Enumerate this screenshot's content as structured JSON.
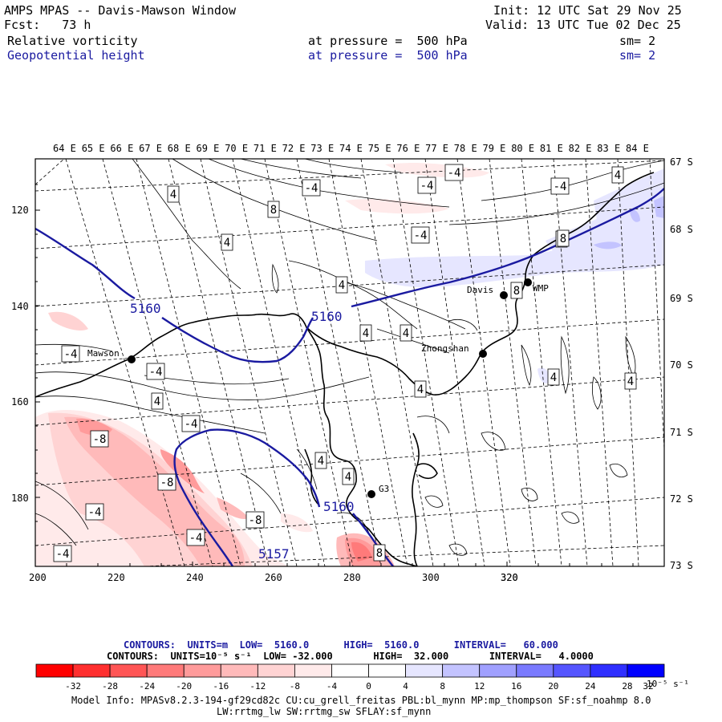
{
  "header": {
    "title": "AMPS MPAS -- Davis-Mawson Window",
    "init": "Init: 12 UTC Sat 29 Nov 25",
    "fcst": "Fcst:   73 h",
    "valid": "Valid: 13 UTC Tue 02 Dec 25",
    "field1_name": "Relative vorticity",
    "field1_level": "at pressure =  500 hPa",
    "field1_sm": "sm= 2",
    "field2_name": "Geopotential height",
    "field2_level": "at pressure =  500 hPa",
    "field2_sm": "sm= 2"
  },
  "map": {
    "lon_labels": [
      "64 E",
      "65 E",
      "66 E",
      "67 E",
      "68 E",
      "69 E",
      "70 E",
      "71 E",
      "72 E",
      "73 E",
      "74 E",
      "75 E",
      "76 E",
      "77 E",
      "78 E",
      "79 E",
      "80 E",
      "81 E",
      "82 E",
      "83 E",
      "84 E"
    ],
    "lat_labels": [
      "67 S",
      "68 S",
      "69 S",
      "70 S",
      "71 S",
      "72 S",
      "73 S"
    ],
    "x_ticks": [
      "200",
      "220",
      "240",
      "260",
      "280",
      "300",
      "320"
    ],
    "y_ticks": [
      "120",
      "140",
      "160",
      "180"
    ],
    "stations": [
      {
        "name": "Mawson"
      },
      {
        "name": "Davis"
      },
      {
        "name": "WMP"
      },
      {
        "name": "Zhongshan"
      },
      {
        "name": "G3"
      }
    ],
    "height_labels": [
      "5160",
      "5160",
      "5160",
      "5157"
    ],
    "vort_labels": [
      "4",
      "4",
      "8",
      "4",
      "4",
      "4",
      "4",
      "4",
      "4",
      "4",
      "4",
      "4",
      "4",
      "4",
      "-4",
      "-4",
      "-4",
      "-4",
      "-4",
      "-4",
      "-4",
      "-4",
      "-4",
      "-4",
      "-4",
      "-8",
      "-8",
      "-8",
      "-8",
      "8",
      "8",
      "8"
    ]
  },
  "legend": {
    "contours_height": "CONTOURS:  UNITS=m  LOW=  5160.0      HIGH=  5160.0      INTERVAL=   60.000",
    "contours_vort": "CONTOURS:  UNITS=10⁻⁵ s⁻¹  LOW= -32.000       HIGH=  32.000       INTERVAL=   4.0000",
    "colorbar_ticks": [
      "-32",
      "-28",
      "-24",
      "-20",
      "-16",
      "-12",
      "-8",
      "-4",
      "0",
      "4",
      "8",
      "12",
      "16",
      "20",
      "24",
      "28",
      "32"
    ],
    "colorbar_units": "10⁻⁵ s⁻¹",
    "colors": [
      "#ff0000",
      "#ff2f2f",
      "#ff5555",
      "#ff7a7a",
      "#ff9b9b",
      "#ffbaba",
      "#ffd3d3",
      "#ffeaea",
      "#ffffff",
      "#ffffff",
      "#e6e6ff",
      "#c3c3ff",
      "#a0a0ff",
      "#7a7aff",
      "#5555ff",
      "#2f2fff",
      "#0000ff"
    ]
  },
  "footer": {
    "model_info": "Model Info: MPASv8.2.3-194-gf29cd82c CU:cu_grell_freitas PBL:bl_mynn MP:mp_thompson SF:sf_noahmp 8.0",
    "model_info2": "LW:rrtmg_lw SW:rrtmg_sw SFLAY:sf_mynn"
  }
}
